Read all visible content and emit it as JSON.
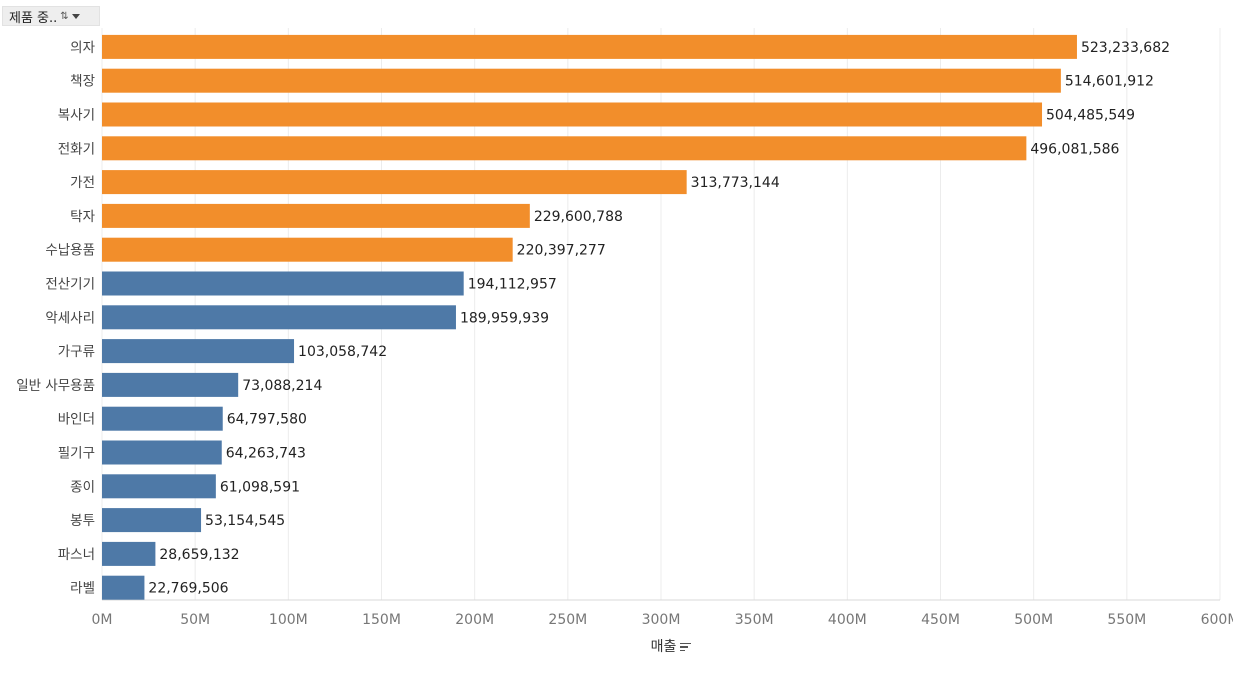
{
  "filter_pill": {
    "label": "제품 중.."
  },
  "colors": {
    "highlight": "#F28E2B",
    "base": "#4E79A7",
    "grid": "#ececec",
    "axis": "#d9d9d9"
  },
  "chart_data": {
    "type": "bar",
    "orientation": "horizontal",
    "xlabel": "매출",
    "xlim": [
      0,
      600000000
    ],
    "x_ticks": [
      "0M",
      "50M",
      "100M",
      "150M",
      "200M",
      "250M",
      "300M",
      "350M",
      "400M",
      "450M",
      "500M",
      "550M",
      "600M"
    ],
    "x_tick_values": [
      0,
      50000000,
      100000000,
      150000000,
      200000000,
      250000000,
      300000000,
      350000000,
      400000000,
      450000000,
      500000000,
      550000000,
      600000000
    ],
    "grid": true,
    "categories": [
      "의자",
      "책장",
      "복사기",
      "전화기",
      "가전",
      "탁자",
      "수납용품",
      "전산기기",
      "악세사리",
      "가구류",
      "일반 사무용품",
      "바인더",
      "필기구",
      "종이",
      "봉투",
      "파스너",
      "라벨"
    ],
    "values": [
      523233682,
      514601912,
      504485549,
      496081586,
      313773144,
      229600788,
      220397277,
      194112957,
      189959939,
      103058742,
      73088214,
      64797580,
      64263743,
      61098591,
      53154545,
      28659132,
      22769506
    ],
    "value_labels": [
      "523,233,682",
      "514,601,912",
      "504,485,549",
      "496,081,586",
      "313,773,144",
      "229,600,788",
      "220,397,277",
      "194,112,957",
      "189,959,939",
      "103,058,742",
      "73,088,214",
      "64,797,580",
      "64,263,743",
      "61,098,591",
      "53,154,545",
      "28,659,132",
      "22,769,506"
    ],
    "highlighted": [
      true,
      true,
      true,
      true,
      true,
      true,
      true,
      false,
      false,
      false,
      false,
      false,
      false,
      false,
      false,
      false,
      false
    ]
  }
}
